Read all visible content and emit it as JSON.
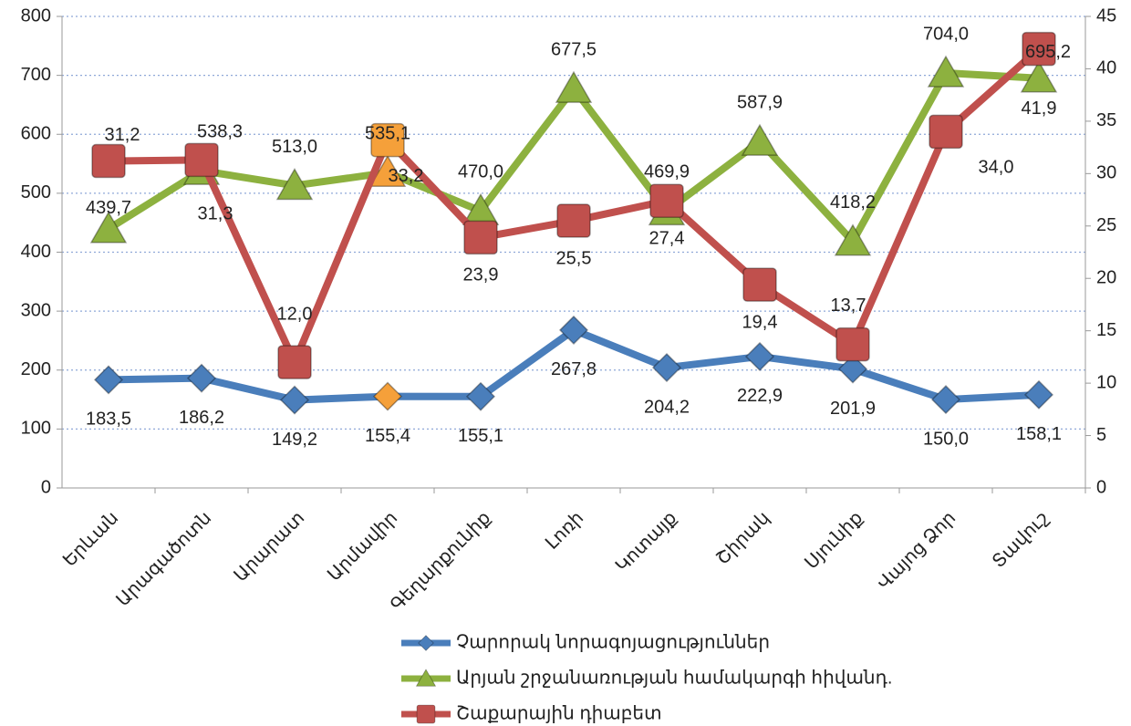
{
  "chart_data": {
    "type": "line",
    "categories": [
      "Երևան",
      "Արագածոտն",
      "Արարատ",
      "Արմավիր",
      "Գեղարքունիք",
      "Լոռի",
      "Կոտայք",
      "Շիրակ",
      "Սյունիք",
      "Վայոց Ձոր",
      "Տավուշ"
    ],
    "series": [
      {
        "name": "Չարորակ նորագոյացություններ",
        "color": "#4a7ebb",
        "marker": "diamond",
        "values": [
          183.5,
          186.2,
          149.2,
          155.4,
          155.1,
          267.8,
          204.2,
          222.9,
          201.9,
          150.0,
          158.1
        ],
        "value_labels": [
          "183,5",
          "186,2",
          "149,2",
          "155,4",
          "155,1",
          "267,8",
          "204,2",
          "222,9",
          "201,9",
          "150,0",
          "158,1"
        ]
      },
      {
        "name": "Արյան շրջանառության համակարգի հիվանդ.",
        "color": "#8db13f",
        "marker": "triangle",
        "values": [
          439.7,
          538.3,
          513.0,
          535.1,
          470.0,
          677.5,
          469.9,
          587.9,
          418.2,
          704.0,
          695.2
        ],
        "value_labels": [
          "439,7",
          "538,3",
          "513,0",
          "535,1",
          "470,0",
          "677,5",
          "469,9",
          "587,9",
          "418,2",
          "704,0",
          "695,2"
        ]
      },
      {
        "name": "Շաքարային դիաբետ",
        "color": "#c0504d",
        "marker": "square",
        "axis": "y2",
        "values": [
          31.2,
          31.3,
          12.0,
          33.2,
          23.9,
          25.5,
          27.4,
          19.4,
          13.7,
          34.0,
          41.9
        ],
        "value_labels": [
          "31,2",
          "31,3",
          "12,0",
          "33,2",
          "23,9",
          "25,5",
          "27,4",
          "19,4",
          "13,7",
          "34,0",
          "41,9"
        ]
      }
    ],
    "highlight": {
      "index": 3,
      "color": "#f5a03a"
    },
    "ylim": [
      0,
      800
    ],
    "yticks": [
      0,
      100,
      200,
      300,
      400,
      500,
      600,
      700,
      800
    ],
    "y2lim": [
      0,
      45
    ],
    "y2ticks": [
      0,
      5,
      10,
      15,
      20,
      25,
      30,
      35,
      40,
      45
    ],
    "grid": true
  }
}
